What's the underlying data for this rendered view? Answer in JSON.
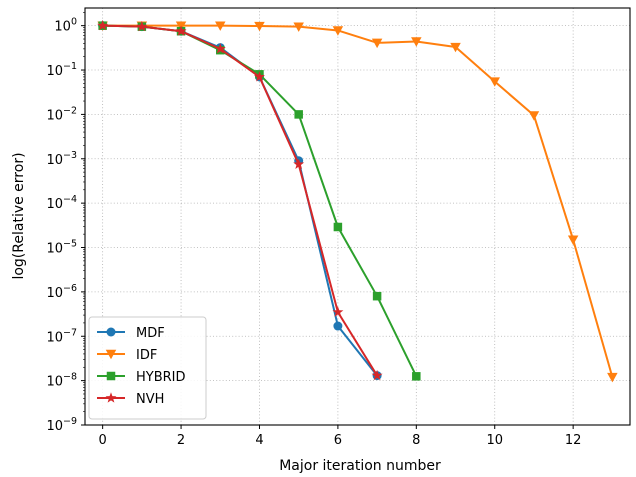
{
  "chart_data": {
    "type": "line",
    "title": "",
    "xlabel": "Major iteration number",
    "ylabel": "log(Relative error)",
    "xscale": "linear",
    "yscale": "log",
    "xlim": [
      -0.45,
      13.45
    ],
    "ylim": [
      1e-09,
      2.5
    ],
    "xticks": [
      0,
      2,
      4,
      6,
      8,
      10,
      12
    ],
    "xtick_labels": [
      "0",
      "2",
      "4",
      "6",
      "8",
      "10",
      "12"
    ],
    "yticks": [
      1e-09,
      1e-08,
      1e-07,
      1e-06,
      1e-05,
      0.0001,
      0.001,
      0.01,
      0.1,
      1
    ],
    "ytick_labels": [
      {
        "base": "10",
        "exp": "−9"
      },
      {
        "base": "10",
        "exp": "−8"
      },
      {
        "base": "10",
        "exp": "−7"
      },
      {
        "base": "10",
        "exp": "−6"
      },
      {
        "base": "10",
        "exp": "−5"
      },
      {
        "base": "10",
        "exp": "−4"
      },
      {
        "base": "10",
        "exp": "−3"
      },
      {
        "base": "10",
        "exp": "−2"
      },
      {
        "base": "10",
        "exp": "−1"
      },
      {
        "base": "10",
        "exp": "0"
      }
    ],
    "grid": true,
    "grid_style": "dotted",
    "legend_location": "lower-left",
    "series": [
      {
        "name": "MDF",
        "color": "#1f77b4",
        "marker": "circle",
        "x": [
          0,
          1,
          2,
          3,
          4,
          5,
          6,
          7
        ],
        "y": [
          1.0,
          0.95,
          0.75,
          0.32,
          0.07,
          0.0009,
          1.7e-07,
          1.3e-08
        ]
      },
      {
        "name": "IDF",
        "color": "#ff7f0e",
        "marker": "triangle-down",
        "x": [
          0,
          1,
          2,
          3,
          4,
          5,
          6,
          7,
          8,
          9,
          10,
          11,
          12,
          13
        ],
        "y": [
          1.0,
          1.0,
          1.0,
          1.0,
          0.98,
          0.95,
          0.78,
          0.41,
          0.44,
          0.33,
          0.055,
          0.0095,
          1.5e-05,
          1.2e-08
        ]
      },
      {
        "name": "HYBRID",
        "color": "#2ca02c",
        "marker": "square",
        "x": [
          0,
          1,
          2,
          3,
          4,
          5,
          6,
          7,
          8
        ],
        "y": [
          1.0,
          0.95,
          0.75,
          0.28,
          0.08,
          0.01,
          2.9e-05,
          8e-07,
          1.25e-08
        ]
      },
      {
        "name": "NVH",
        "color": "#d62728",
        "marker": "star",
        "x": [
          0,
          1,
          2,
          3,
          4,
          5,
          6,
          7
        ],
        "y": [
          1.0,
          0.95,
          0.75,
          0.3,
          0.07,
          0.00075,
          3.5e-07,
          1.3e-08
        ]
      }
    ]
  }
}
